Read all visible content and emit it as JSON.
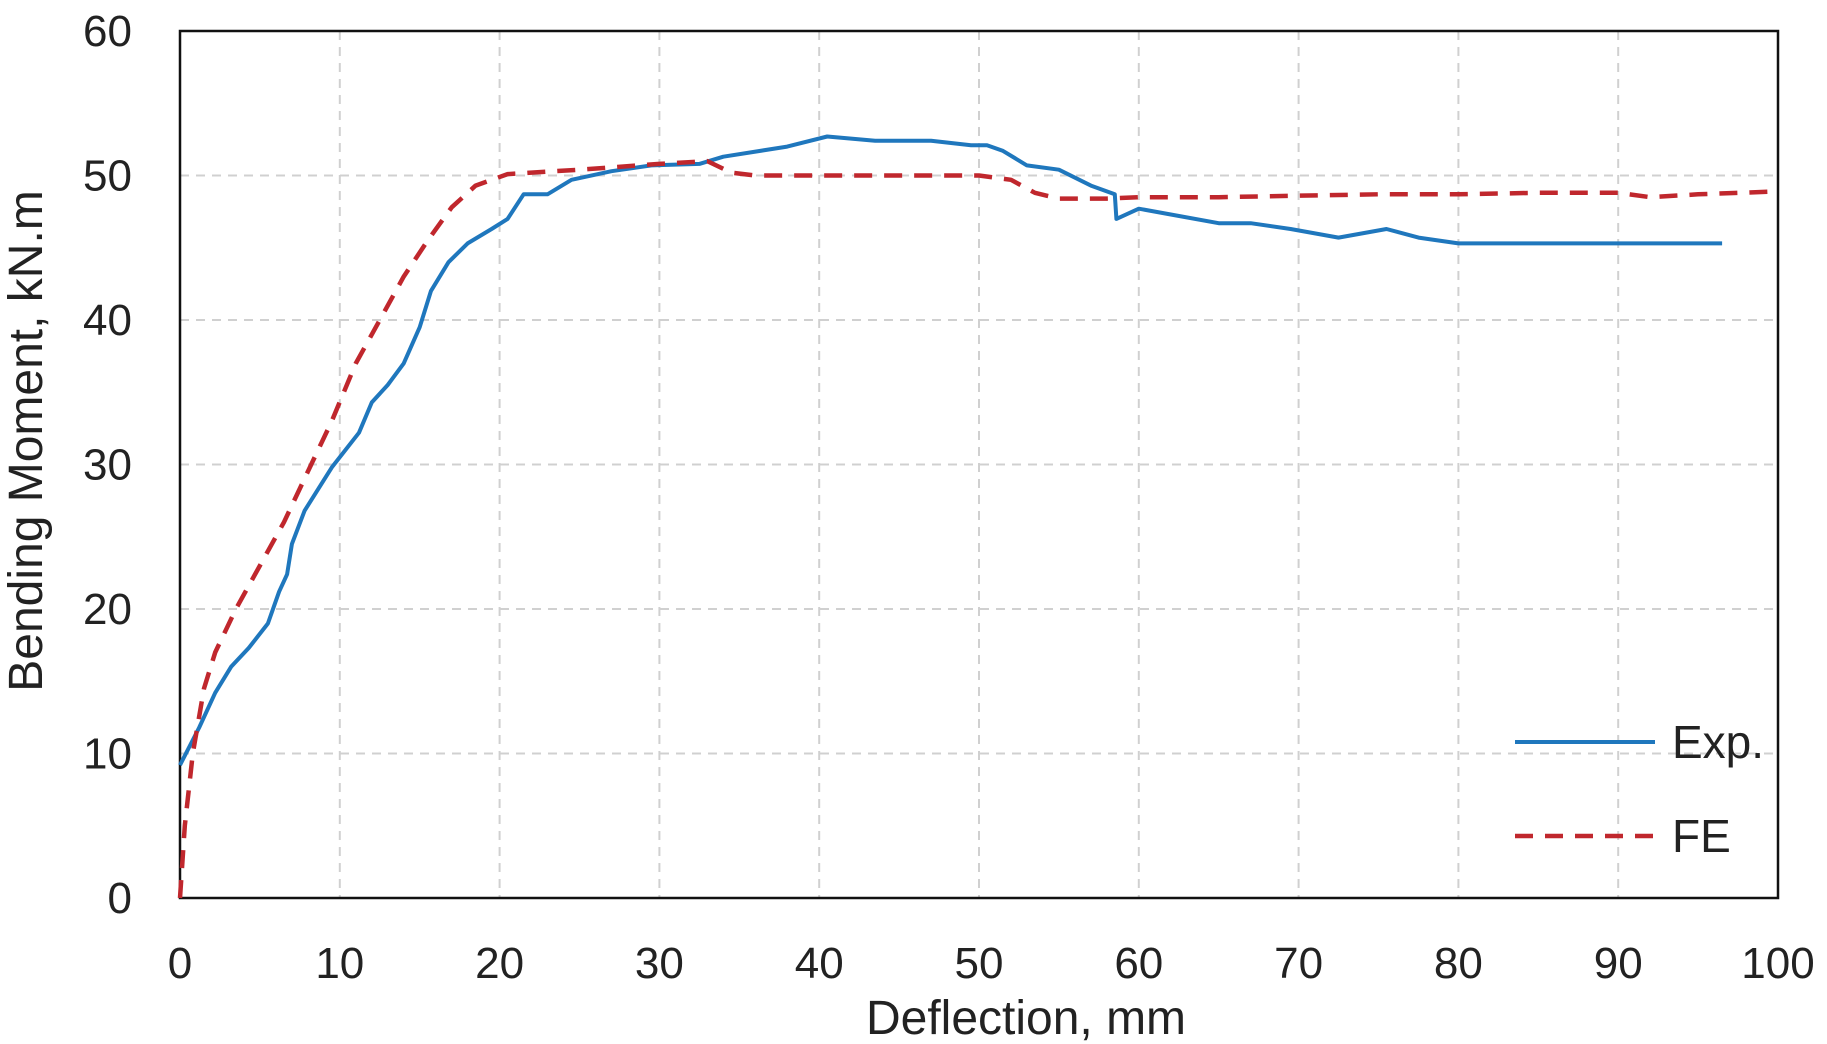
{
  "chart_data": {
    "type": "line",
    "title": "",
    "xlabel": "Deflection, mm",
    "ylabel": "Bending Moment, kN.m",
    "xlim": [
      0,
      100
    ],
    "ylim": [
      0,
      60
    ],
    "x_ticks": [
      "0",
      "10",
      "20",
      "30",
      "40",
      "50",
      "60",
      "70",
      "80",
      "90",
      "100"
    ],
    "y_ticks": [
      "0",
      "10",
      "20",
      "30",
      "40",
      "50",
      "60"
    ],
    "grid": true,
    "legend_position": "bottom-right",
    "series": [
      {
        "name": "Exp.",
        "color": "#1f77bd",
        "style": "solid",
        "points": [
          [
            0,
            9.2
          ],
          [
            1.2,
            11.8
          ],
          [
            2.2,
            14.2
          ],
          [
            3.2,
            16.0
          ],
          [
            4.3,
            17.3
          ],
          [
            5.5,
            19.0
          ],
          [
            6.2,
            21.2
          ],
          [
            6.7,
            22.4
          ],
          [
            7.0,
            24.5
          ],
          [
            7.8,
            26.8
          ],
          [
            9.5,
            29.8
          ],
          [
            11.2,
            32.2
          ],
          [
            12.0,
            34.3
          ],
          [
            13.0,
            35.5
          ],
          [
            14.0,
            37.0
          ],
          [
            15.0,
            39.5
          ],
          [
            15.7,
            42.0
          ],
          [
            16.8,
            44.0
          ],
          [
            18.0,
            45.3
          ],
          [
            19.5,
            46.3
          ],
          [
            20.5,
            47.0
          ],
          [
            21.5,
            48.7
          ],
          [
            23.0,
            48.7
          ],
          [
            24.5,
            49.7
          ],
          [
            27.0,
            50.3
          ],
          [
            29.5,
            50.7
          ],
          [
            32.5,
            50.8
          ],
          [
            34.0,
            51.3
          ],
          [
            38.0,
            52.0
          ],
          [
            40.5,
            52.7
          ],
          [
            43.5,
            52.4
          ],
          [
            47.0,
            52.4
          ],
          [
            49.5,
            52.1
          ],
          [
            50.5,
            52.1
          ],
          [
            51.5,
            51.7
          ],
          [
            53.0,
            50.7
          ],
          [
            55.0,
            50.4
          ],
          [
            57.0,
            49.3
          ],
          [
            58.5,
            48.7
          ],
          [
            58.6,
            47.0
          ],
          [
            60.0,
            47.7
          ],
          [
            62.0,
            47.3
          ],
          [
            65.0,
            46.7
          ],
          [
            67.0,
            46.7
          ],
          [
            69.5,
            46.3
          ],
          [
            72.5,
            45.7
          ],
          [
            75.5,
            46.3
          ],
          [
            77.5,
            45.7
          ],
          [
            80.0,
            45.3
          ],
          [
            85.0,
            45.3
          ],
          [
            90.0,
            45.3
          ],
          [
            96.5,
            45.3
          ]
        ]
      },
      {
        "name": "FE",
        "color": "#c0272d",
        "style": "dashed",
        "points": [
          [
            0,
            0
          ],
          [
            0.3,
            5.0
          ],
          [
            0.8,
            10.0
          ],
          [
            1.5,
            14.5
          ],
          [
            2.2,
            17.0
          ],
          [
            3.5,
            20.0
          ],
          [
            5.0,
            23.0
          ],
          [
            6.5,
            26.0
          ],
          [
            8.0,
            29.5
          ],
          [
            9.5,
            33.0
          ],
          [
            11.0,
            37.0
          ],
          [
            12.5,
            40.0
          ],
          [
            14.0,
            43.0
          ],
          [
            15.5,
            45.5
          ],
          [
            17.0,
            47.8
          ],
          [
            18.5,
            49.3
          ],
          [
            20.5,
            50.1
          ],
          [
            22.0,
            50.2
          ],
          [
            25.0,
            50.4
          ],
          [
            30.0,
            50.8
          ],
          [
            33.0,
            51.0
          ],
          [
            34.5,
            50.2
          ],
          [
            36.0,
            50.0
          ],
          [
            40.0,
            50.0
          ],
          [
            45.0,
            50.0
          ],
          [
            50.0,
            50.0
          ],
          [
            52.0,
            49.7
          ],
          [
            53.5,
            48.8
          ],
          [
            55.0,
            48.4
          ],
          [
            58.0,
            48.4
          ],
          [
            60.0,
            48.5
          ],
          [
            65.0,
            48.5
          ],
          [
            70.0,
            48.6
          ],
          [
            75.0,
            48.7
          ],
          [
            80.0,
            48.7
          ],
          [
            85.0,
            48.8
          ],
          [
            90.0,
            48.8
          ],
          [
            92.0,
            48.5
          ],
          [
            95.0,
            48.7
          ],
          [
            100.0,
            48.9
          ]
        ]
      }
    ]
  }
}
